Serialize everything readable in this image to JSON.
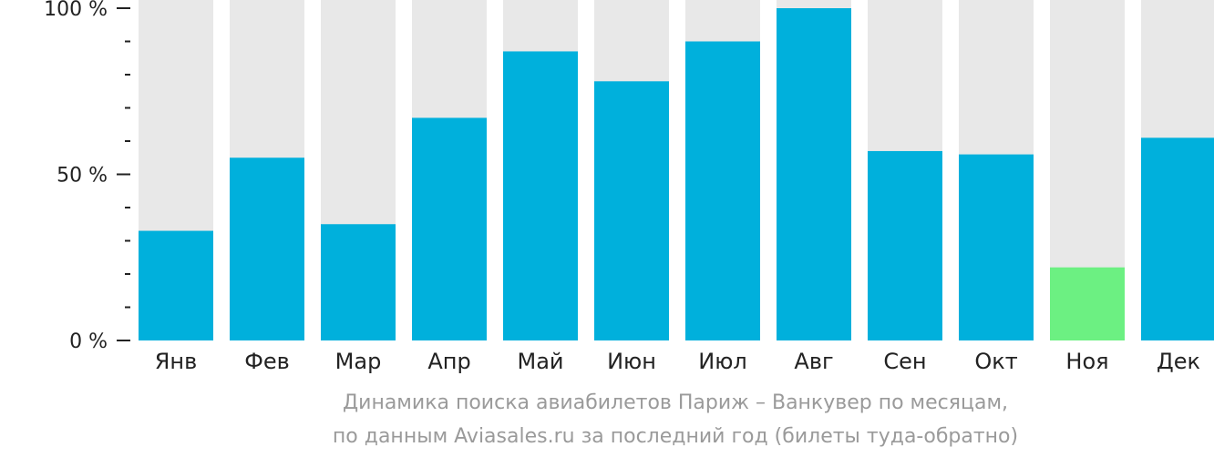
{
  "chart_data": {
    "type": "bar",
    "categories": [
      "Янв",
      "Фев",
      "Мар",
      "Апр",
      "Май",
      "Июн",
      "Июл",
      "Авг",
      "Сен",
      "Окт",
      "Ноя",
      "Дек"
    ],
    "values": [
      33,
      55,
      35,
      67,
      87,
      78,
      90,
      100,
      57,
      56,
      22,
      61
    ],
    "ylim": [
      0,
      100
    ],
    "y_tick_labels": [
      "0 %",
      "50 %",
      "100 %"
    ],
    "y_tick_values": [
      0,
      50,
      100
    ],
    "caption_line1": "Динамика поиска авиабилетов Париж – Ванкувер по месяцам,",
    "caption_line2": "по данным Aviasales.ru за последний год (билеты туда-обратно)",
    "colors": {
      "bar": "#00b0dc",
      "bar_min": "#6cf082",
      "background_bar": "#e8e8e8",
      "axis": "#222222"
    },
    "highlight_min_index": 10
  }
}
